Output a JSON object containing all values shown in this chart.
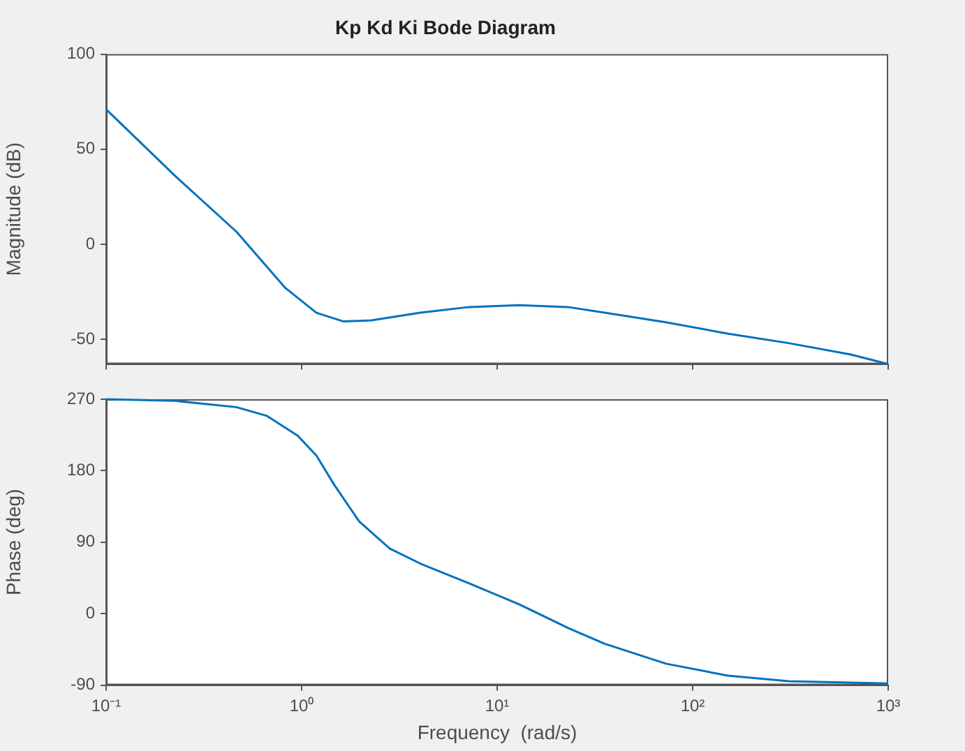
{
  "chart_data": [
    {
      "type": "line",
      "title": "Kp Kd Ki Bode Diagram",
      "ylabel": "Magnitude (dB)",
      "x": [
        0.1,
        0.225,
        0.464,
        0.826,
        1.19,
        1.64,
        2.27,
        4.05,
        7.2,
        12.9,
        23,
        35.5,
        73,
        151,
        310,
        645,
        1000
      ],
      "series": [
        {
          "color": "#0072bd",
          "values": [
            71,
            36,
            6.6,
            -23,
            -36,
            -40.6,
            -40,
            -36,
            -33,
            -32,
            -33,
            -36,
            -41,
            -47,
            -52,
            -58,
            -63
          ]
        }
      ],
      "xlim": [
        0.1,
        1000
      ],
      "xticks": [
        {
          "value": 0.1,
          "label": null
        },
        {
          "value": 1,
          "label": null
        },
        {
          "value": 10,
          "label": null
        },
        {
          "value": 100,
          "label": null
        },
        {
          "value": 1000,
          "label": null
        }
      ],
      "ylim": [
        -63,
        100
      ],
      "yticks": [
        -50,
        0,
        50,
        100
      ],
      "log": "x",
      "grid": false,
      "legend": false,
      "tick_labels": "y",
      "line_style": "solid",
      "marker": "none"
    },
    {
      "type": "line",
      "xlabel": "Frequency  (rad/s)",
      "ylabel": "Phase (deg)",
      "x": [
        0.1,
        0.225,
        0.464,
        0.665,
        0.955,
        1.19,
        1.47,
        1.97,
        2.82,
        4.05,
        7.2,
        12.9,
        23,
        35.5,
        73,
        151,
        310,
        1000
      ],
      "series": [
        {
          "color": "#0072bd",
          "values": [
            270,
            268,
            260,
            249,
            224,
            199,
            162,
            116,
            82,
            63,
            38,
            12,
            -18,
            -38,
            -63,
            -78,
            -85,
            -88
          ]
        }
      ],
      "xlim": [
        0.1,
        1000
      ],
      "xticks": [
        {
          "value": 0.1,
          "label": "10⁻¹"
        },
        {
          "value": 1,
          "label": "10⁰"
        },
        {
          "value": 10,
          "label": "10¹"
        },
        {
          "value": 100,
          "label": "10²"
        },
        {
          "value": 1000,
          "label": "10³"
        }
      ],
      "ylim": [
        -90,
        270
      ],
      "yticks": [
        -90,
        0,
        90,
        180,
        270
      ],
      "log": "x",
      "grid": false,
      "legend": false,
      "line_style": "solid",
      "marker": "none"
    }
  ]
}
